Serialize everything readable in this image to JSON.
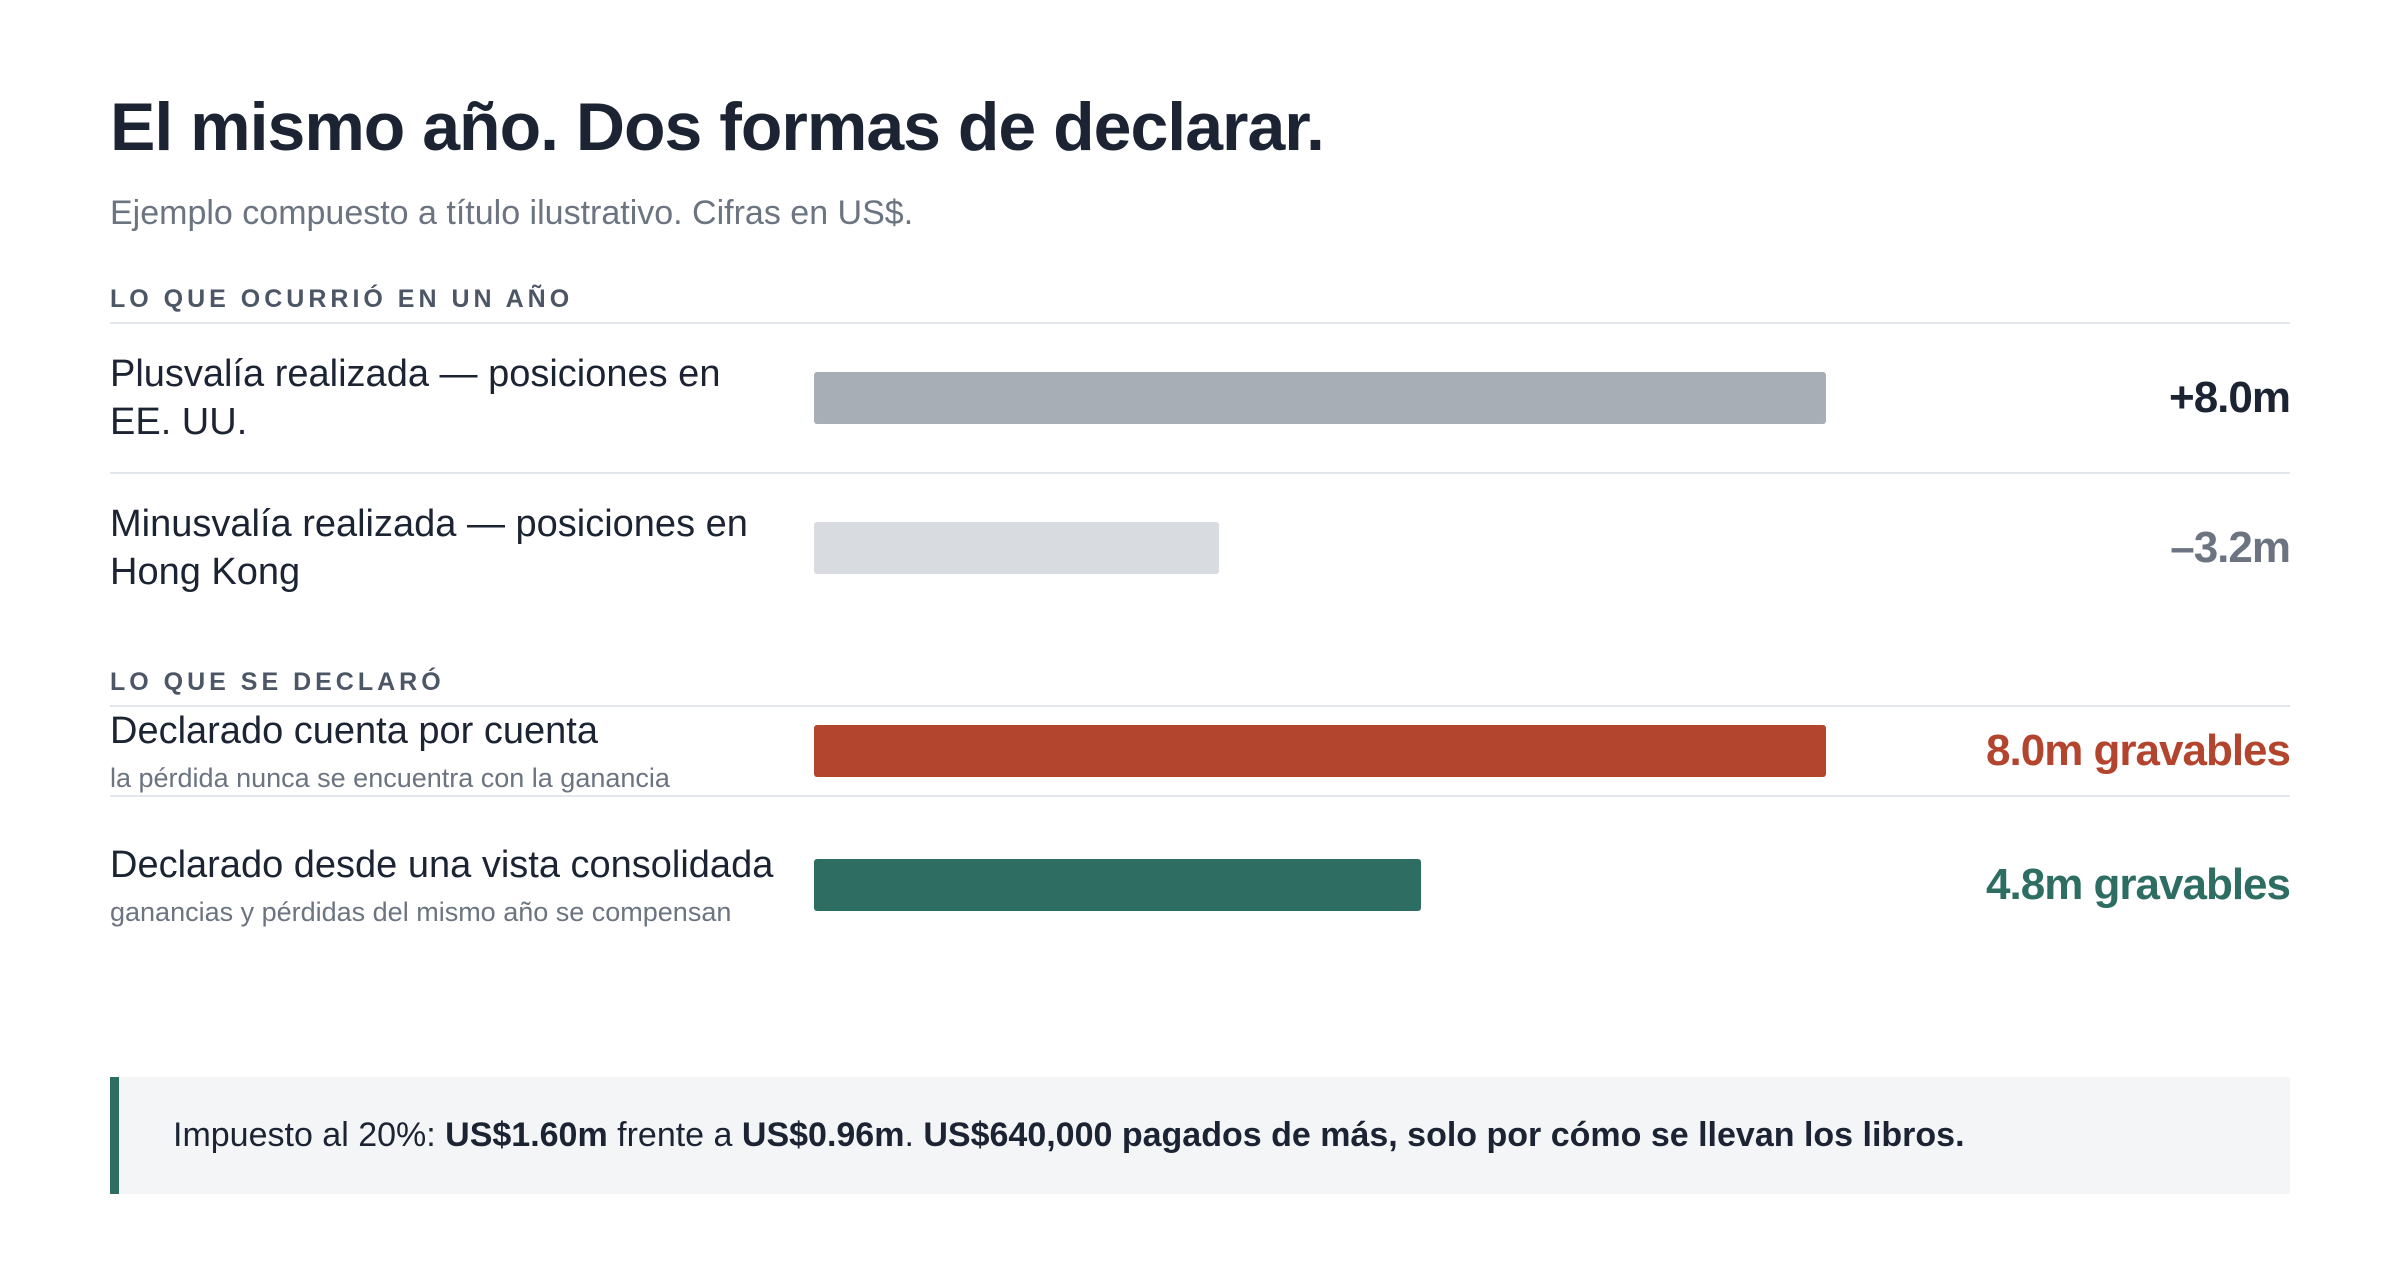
{
  "chart_data": {
    "type": "bar",
    "title": "El mismo año. Dos formas de declarar.",
    "subtitle": "Ejemplo compuesto a título ilustrativo. Cifras en US$.",
    "groups": [
      {
        "heading": "LO QUE OCURRIÓ EN UN AÑO",
        "rows": [
          {
            "label": "Plusvalía realizada — posiciones en EE. UU.",
            "value": 8.0,
            "value_label": "+8.0m",
            "color": "#a7aeb5",
            "label_color": "#1c2433"
          },
          {
            "label": "Minusvalía realizada — posiciones en Hong Kong",
            "value": -3.2,
            "value_label": "–3.2m",
            "color": "#d8dbdf",
            "label_color": "#6b7480"
          }
        ]
      },
      {
        "heading": "LO QUE SE DECLARÓ",
        "rows": [
          {
            "label": "Declarado cuenta por cuenta",
            "sublabel": "la pérdida nunca se encuentra con la ganancia",
            "value": 8.0,
            "value_label": "8.0m gravables",
            "color": "#b3452f",
            "label_color": "#b3452f"
          },
          {
            "label": "Declarado desde una vista consolidada",
            "sublabel": "ganancias y pérdidas del mismo año se compensan",
            "value": 4.8,
            "value_label": "4.8m gravables",
            "color": "#2e6e62",
            "label_color": "#2e6e62"
          }
        ]
      }
    ],
    "note": [
      {
        "text": "Impuesto al 20%: ",
        "bold": false
      },
      {
        "text": "US$1.60m",
        "bold": true
      },
      {
        "text": " frente a ",
        "bold": false
      },
      {
        "text": "US$0.96m",
        "bold": true
      },
      {
        "text": ". ",
        "bold": false
      },
      {
        "text": "US$640,000 pagados de más, solo por cómo se llevan los libros.",
        "bold": true
      }
    ],
    "note_color": "#2e6e62"
  }
}
